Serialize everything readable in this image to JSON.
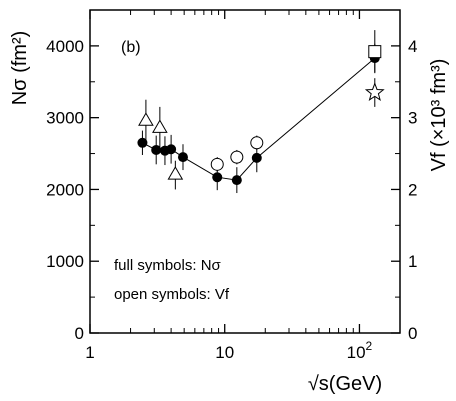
{
  "chart_data": {
    "type": "scatter",
    "panel_label": "(b)",
    "xlabel": "√s(GeV)",
    "ylabel_left": "Nσ (fm²)",
    "ylabel_right": "Vf (×10³ fm³)",
    "x_scale": "log",
    "xlim": [
      1,
      200
    ],
    "ylim_left": [
      0,
      4500
    ],
    "ylim_right": [
      0,
      4.5
    ],
    "x_ticks": [
      {
        "value": 1,
        "label": "1"
      },
      {
        "value": 10,
        "label": "10"
      },
      {
        "value": 100,
        "label": "10",
        "sup": "2"
      }
    ],
    "y_ticks_left": [
      0,
      1000,
      2000,
      3000,
      4000
    ],
    "y_ticks_right": [
      0,
      1,
      2,
      3,
      4
    ],
    "annotations": [
      "full symbols: Nσ",
      "open symbols: Vf"
    ],
    "series": [
      {
        "marker": "filled-circle",
        "axis": "left",
        "connected": true,
        "points": [
          {
            "x": 2.45,
            "y": 2650,
            "err": 170
          },
          {
            "x": 3.1,
            "y": 2550,
            "err": 200
          },
          {
            "x": 3.6,
            "y": 2540,
            "err": 200
          },
          {
            "x": 4.0,
            "y": 2560,
            "err": 200
          },
          {
            "x": 4.9,
            "y": 2450,
            "err": 180
          },
          {
            "x": 8.8,
            "y": 2170,
            "err": 180
          },
          {
            "x": 12.3,
            "y": 2130,
            "err": 180
          },
          {
            "x": 17.3,
            "y": 2440,
            "err": 200
          },
          {
            "x": 130,
            "y": 3830,
            "err": 200
          }
        ]
      },
      {
        "marker": "open-triangle",
        "axis": "right",
        "points": [
          {
            "x": 2.6,
            "y": 2.95,
            "err": 0.3
          },
          {
            "x": 3.3,
            "y": 2.85,
            "err": 0.3
          },
          {
            "x": 4.3,
            "y": 2.2,
            "err": 0.2
          }
        ]
      },
      {
        "marker": "open-circle",
        "axis": "right",
        "points": [
          {
            "x": 8.8,
            "y": 2.35,
            "err": 0.1
          },
          {
            "x": 12.3,
            "y": 2.45,
            "err": 0.1
          },
          {
            "x": 17.3,
            "y": 2.65,
            "err": 0.1
          }
        ]
      },
      {
        "marker": "open-square",
        "axis": "right",
        "points": [
          {
            "x": 130,
            "y": 3.92,
            "err": 0.3
          }
        ]
      },
      {
        "marker": "open-star",
        "axis": "right",
        "points": [
          {
            "x": 130,
            "y": 3.35,
            "err": 0.2
          }
        ]
      }
    ]
  }
}
